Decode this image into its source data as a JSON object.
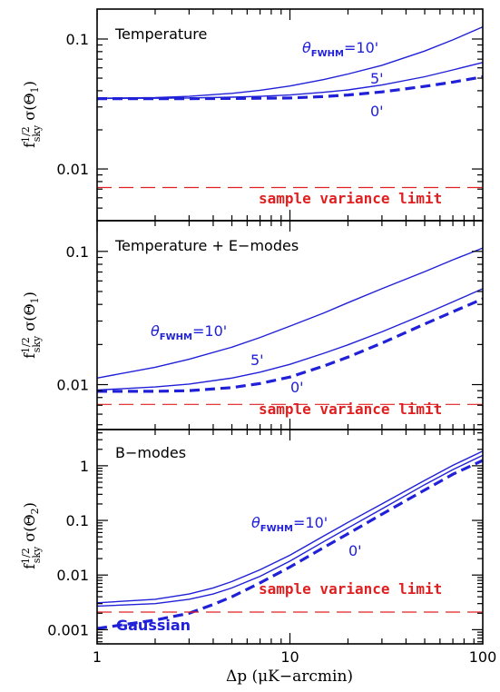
{
  "figure": {
    "xlabel": "Δp (μK−arcmin)"
  },
  "colors": {
    "solid": "#2020d8",
    "dashed": "#2020d8",
    "limit": "#e02020",
    "annotation": "#2020d8"
  },
  "chart_data": [
    {
      "type": "line",
      "title": "Temperature",
      "ylabel": "f_sky^1/2 σ(Θ1)",
      "x_scale": "log",
      "y_scale": "log",
      "xlim": [
        1,
        100
      ],
      "ylim": [
        0.004,
        0.17
      ],
      "x_ticklabels": [],
      "y_ticks": [
        {
          "value": 0.1,
          "label": "0.1"
        },
        {
          "value": 0.01,
          "label": "0.01"
        }
      ],
      "x": [
        1,
        2,
        3,
        5,
        7,
        10,
        15,
        20,
        30,
        50,
        70,
        100
      ],
      "series": [
        {
          "name": "10'",
          "style": "solid",
          "values": [
            0.035,
            0.0354,
            0.0362,
            0.0382,
            0.0403,
            0.0435,
            0.0488,
            0.0538,
            0.0628,
            0.0808,
            0.0985,
            0.124
          ]
        },
        {
          "name": "5'",
          "style": "solid",
          "values": [
            0.0349,
            0.035,
            0.0352,
            0.0357,
            0.0362,
            0.0371,
            0.0389,
            0.0406,
            0.0443,
            0.0513,
            0.0578,
            0.066
          ]
        },
        {
          "name": "0'",
          "style": "dashed",
          "values": [
            0.0348,
            0.0348,
            0.0348,
            0.0349,
            0.035,
            0.0352,
            0.0361,
            0.0371,
            0.0392,
            0.0432,
            0.0466,
            0.0512
          ]
        },
        {
          "name": "sample variance limit",
          "style": "dashed-limit",
          "values": [
            0.0072,
            0.0072,
            0.0072,
            0.0072,
            0.0072,
            0.0072,
            0.0072,
            0.0072,
            0.0072,
            0.0072,
            0.0072,
            0.0072
          ]
        }
      ],
      "annotations": {
        "fwhm_prefix": "θ",
        "fwhm_sub": "FWHM",
        "fwhm_value": "=10'",
        "label_5": "5'",
        "label_0": "0'",
        "limit_label": "sample variance limit"
      }
    },
    {
      "type": "line",
      "title": "Temperature + E−modes",
      "ylabel": "f_sky^1/2 σ(Θ1)",
      "x_scale": "log",
      "y_scale": "log",
      "xlim": [
        1,
        100
      ],
      "ylim": [
        0.0046,
        0.17
      ],
      "x_ticklabels": [],
      "y_ticks": [
        {
          "value": 0.1,
          "label": "0.1"
        },
        {
          "value": 0.01,
          "label": "0.01"
        }
      ],
      "x": [
        1,
        2,
        3,
        5,
        7,
        10,
        15,
        20,
        30,
        50,
        70,
        100
      ],
      "series": [
        {
          "name": "10'",
          "style": "solid",
          "values": [
            0.0112,
            0.0135,
            0.0155,
            0.0191,
            0.0226,
            0.0275,
            0.0345,
            0.0412,
            0.0525,
            0.0705,
            0.0865,
            0.106
          ]
        },
        {
          "name": "5'",
          "style": "solid",
          "values": [
            0.0091,
            0.0096,
            0.0101,
            0.0112,
            0.0124,
            0.0142,
            0.0172,
            0.0199,
            0.0249,
            0.0338,
            0.0418,
            0.0525
          ]
        },
        {
          "name": "0'",
          "style": "dashed",
          "values": [
            0.0089,
            0.0089,
            0.009,
            0.0095,
            0.0102,
            0.0114,
            0.0138,
            0.0161,
            0.0205,
            0.0285,
            0.0352,
            0.044
          ]
        },
        {
          "name": "sample variance limit",
          "style": "dashed-limit",
          "values": [
            0.0071,
            0.0071,
            0.0071,
            0.0071,
            0.0071,
            0.0071,
            0.0071,
            0.0071,
            0.0071,
            0.0071,
            0.0071,
            0.0071
          ]
        }
      ],
      "annotations": {
        "fwhm_prefix": "θ",
        "fwhm_sub": "FWHM",
        "fwhm_value": "=10'",
        "label_5": "5'",
        "label_0": "0'",
        "limit_label": "sample variance limit"
      }
    },
    {
      "type": "line",
      "title": "B−modes",
      "ylabel": "f_sky^1/2 σ(Θ2)",
      "x_scale": "log",
      "y_scale": "log",
      "xlim": [
        1,
        100
      ],
      "ylim": [
        0.00055,
        4.6
      ],
      "x_ticklabels": [
        {
          "value": 1,
          "label": "1"
        },
        {
          "value": 10,
          "label": "10"
        },
        {
          "value": 100,
          "label": "100"
        }
      ],
      "y_ticks": [
        {
          "value": 1,
          "label": "1"
        },
        {
          "value": 0.1,
          "label": "0.1"
        },
        {
          "value": 0.01,
          "label": "0.01"
        },
        {
          "value": 0.001,
          "label": "0.001"
        }
      ],
      "x": [
        1,
        2,
        3,
        4,
        5,
        7,
        10,
        15,
        20,
        30,
        50,
        70,
        100
      ],
      "series": [
        {
          "name": "10'",
          "style": "solid",
          "values": [
            0.0031,
            0.0036,
            0.0045,
            0.0058,
            0.0076,
            0.0125,
            0.023,
            0.052,
            0.092,
            0.2,
            0.54,
            1.02,
            1.85
          ]
        },
        {
          "name": "",
          "style": "solid",
          "values": [
            0.0027,
            0.003,
            0.0036,
            0.0045,
            0.0058,
            0.0095,
            0.018,
            0.041,
            0.073,
            0.162,
            0.45,
            0.85,
            1.55
          ]
        },
        {
          "name": "0'",
          "style": "dashed",
          "values": [
            0.00105,
            0.0015,
            0.002,
            0.0029,
            0.004,
            0.0072,
            0.014,
            0.032,
            0.057,
            0.13,
            0.36,
            0.7,
            1.25
          ]
        },
        {
          "name": "sample variance limit",
          "style": "dashed-limit",
          "values": [
            0.0021,
            0.0021,
            0.0021,
            0.0021,
            0.0021,
            0.0021,
            0.0021,
            0.0021,
            0.0021,
            0.0021,
            0.0021,
            0.0021,
            0.0021
          ]
        }
      ],
      "annotations": {
        "fwhm_prefix": "θ",
        "fwhm_sub": "FWHM",
        "fwhm_value": "=10'",
        "label_0": "0'",
        "limit_label": "sample variance limit",
        "gaussian_label": "Gaussian"
      }
    }
  ]
}
